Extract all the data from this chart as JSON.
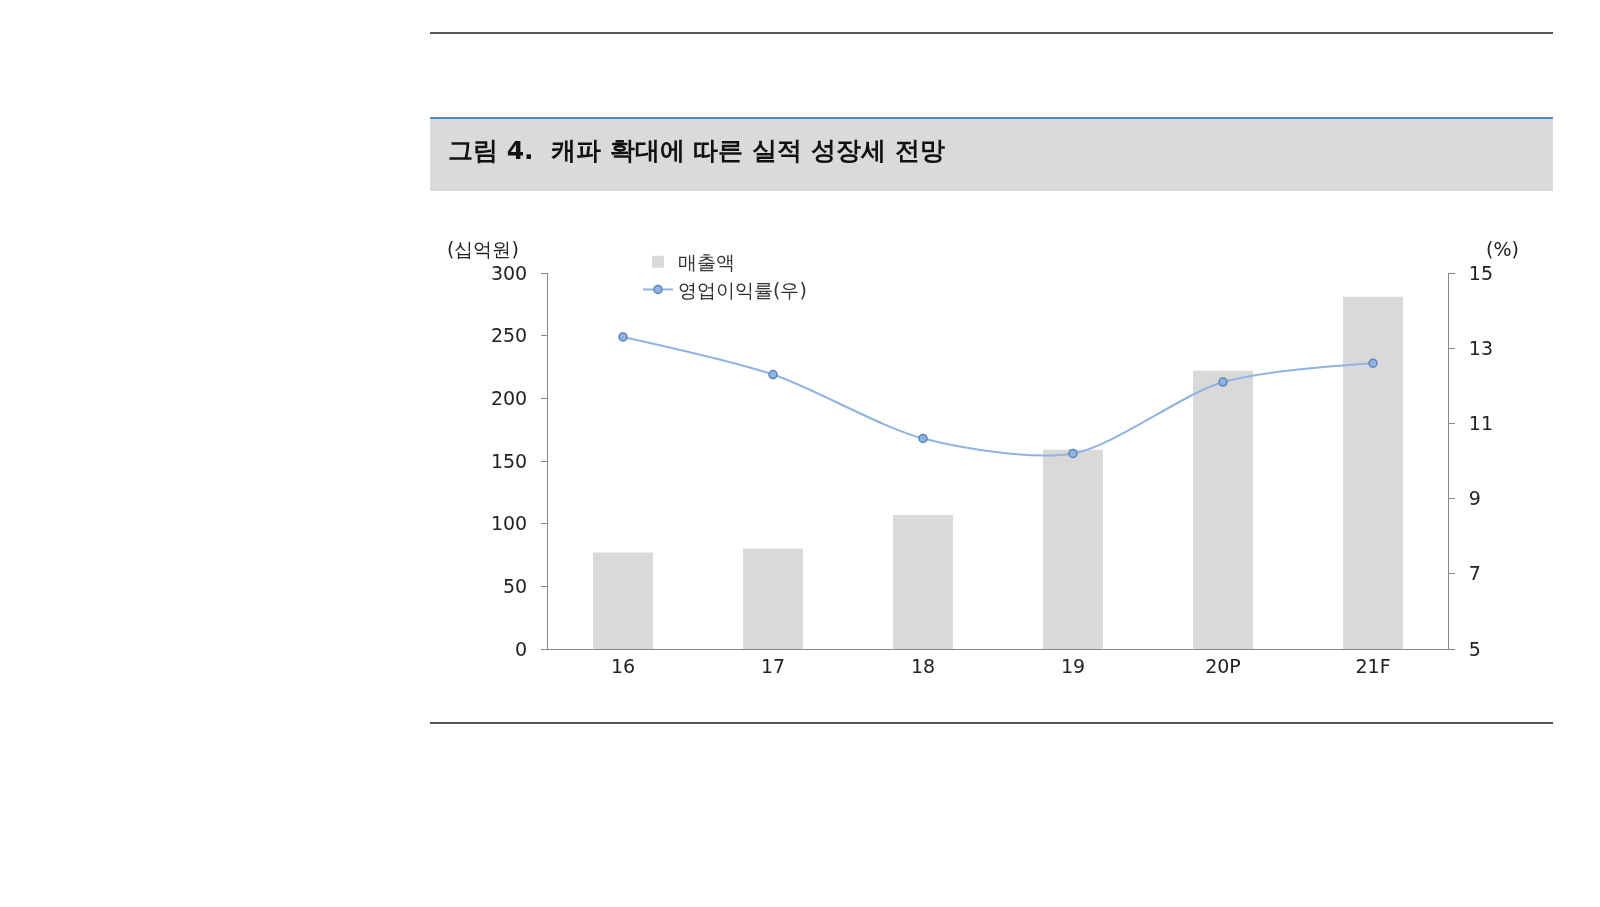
{
  "chart_data": {
    "type": "bar",
    "title": "그림 4.  캐파 확대에 따른 실적 성장세 전망",
    "categories": [
      "16",
      "17",
      "18",
      "19",
      "20P",
      "21F"
    ],
    "series": [
      {
        "name": "매출액",
        "type": "bar",
        "color": "#d9d9d9",
        "values": [
          77,
          80,
          107,
          159,
          222,
          281
        ]
      },
      {
        "name": "영업이익률(우)",
        "type": "line",
        "axis": "y2",
        "color": "#8fb4e0",
        "marker": "circle",
        "line_style": "solid",
        "values": [
          13.3,
          12.3,
          10.6,
          10.2,
          12.1,
          12.6
        ]
      }
    ],
    "ylabel": "(십억원)",
    "y2label": "(%)",
    "ylim": [
      0,
      300
    ],
    "yticks": [
      0,
      50,
      100,
      150,
      200,
      250,
      300
    ],
    "y2lim": [
      5,
      15
    ],
    "y2ticks": [
      5,
      7,
      9,
      11,
      13,
      15
    ],
    "grid": false,
    "legend": "top left"
  }
}
